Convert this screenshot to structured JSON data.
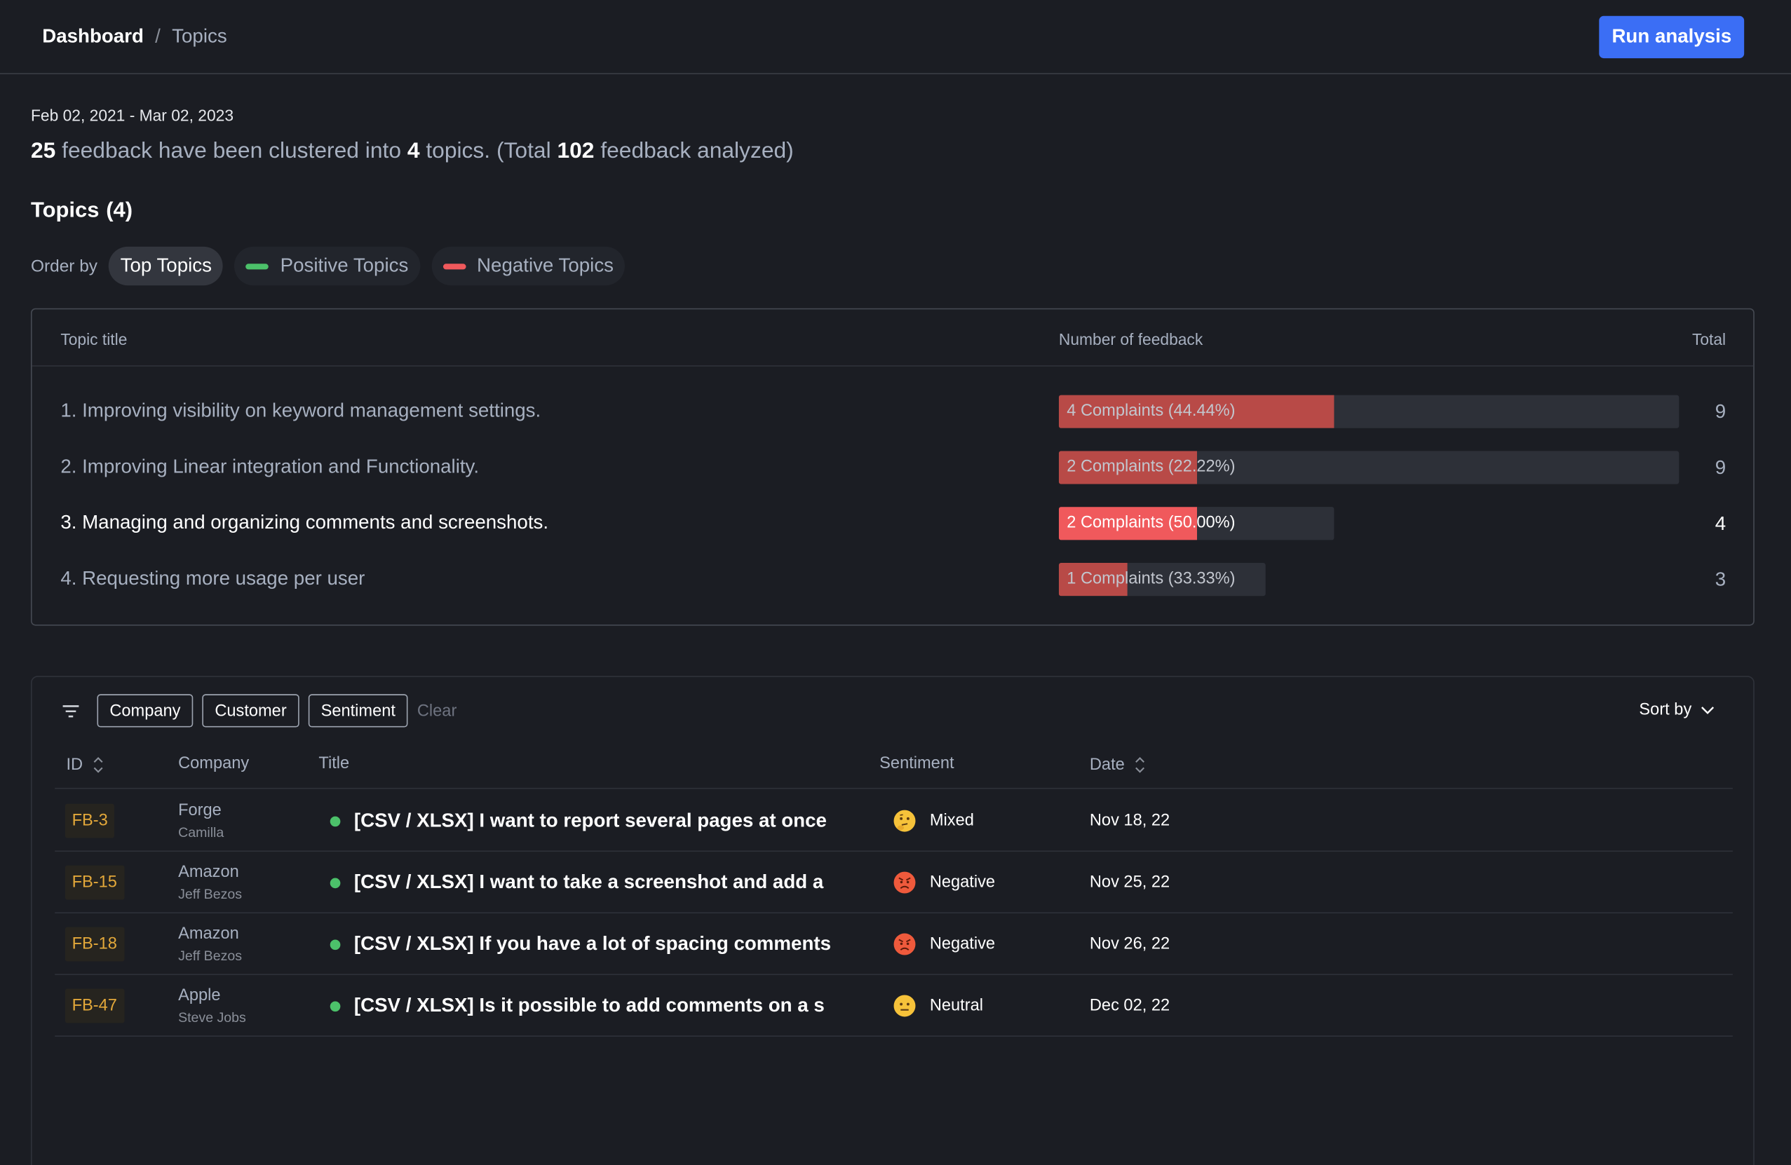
{
  "breadcrumb": {
    "home": "Dashboard",
    "separator": "/",
    "current": "Topics"
  },
  "header": {
    "run_button": "Run analysis"
  },
  "date_range": "Feb 02, 2021 - Mar 02, 2023",
  "summary": {
    "feedback_count": "25",
    "text1": "feedback have been clustered into",
    "topic_count": "4",
    "text2": "topics. (Total",
    "total_count": "102",
    "text3": "feedback analyzed)"
  },
  "topics_heading": {
    "title": "Topics",
    "count": "(4)"
  },
  "order_by": {
    "label": "Order by",
    "options": [
      "Top Topics",
      "Positive Topics",
      "Negative Topics"
    ],
    "active": "Top Topics"
  },
  "topics_table": {
    "columns": [
      "Topic title",
      "Number of feedback",
      "Total"
    ],
    "rows": [
      {
        "title": "1. Improving visibility on keyword management settings.",
        "bar_label": "4 Complaints (44.44%)",
        "complaint_fraction": 0.4444,
        "scale_fraction": 1.0,
        "total": "9"
      },
      {
        "title": "2. Improving Linear integration and Functionality.",
        "bar_label": "2 Complaints (22.22%)",
        "complaint_fraction": 0.2222,
        "scale_fraction": 1.0,
        "total": "9"
      },
      {
        "title": "3. Managing and organizing comments and screenshots.",
        "bar_label": "2 Complaints (50.00%)",
        "complaint_fraction": 0.5,
        "scale_fraction": 0.4444,
        "total": "4"
      },
      {
        "title": "4. Requesting more usage per user",
        "bar_label": "1 Complaints (33.33%)",
        "complaint_fraction": 0.3333,
        "scale_fraction": 0.3333,
        "total": "3"
      }
    ]
  },
  "feedback": {
    "filters": [
      "Company",
      "Customer",
      "Sentiment"
    ],
    "clear": "Clear",
    "sort_by": "Sort by",
    "columns": {
      "id": "ID",
      "company": "Company",
      "title": "Title",
      "sentiment": "Sentiment",
      "date": "Date"
    },
    "rows": [
      {
        "id": "FB-3",
        "company": "Forge",
        "customer": "Camilla",
        "title": "[CSV / XLSX] I want to report several pages at once",
        "sentiment": "Mixed",
        "sentiment_icon": "thinking-face-icon",
        "date": "Nov 18, 22"
      },
      {
        "id": "FB-15",
        "company": "Amazon",
        "customer": "Jeff Bezos",
        "title": "[CSV / XLSX] I want to take a screenshot and add a",
        "sentiment": "Negative",
        "sentiment_icon": "angry-face-icon",
        "date": "Nov 25, 22"
      },
      {
        "id": "FB-18",
        "company": "Amazon",
        "customer": "Jeff Bezos",
        "title": "[CSV / XLSX] If you have a lot of spacing comments",
        "sentiment": "Negative",
        "sentiment_icon": "angry-face-icon",
        "date": "Nov 26, 22"
      },
      {
        "id": "FB-47",
        "company": "Apple",
        "customer": "Steve Jobs",
        "title": "[CSV / XLSX] Is it possible to add comments on a s",
        "sentiment": "Neutral",
        "sentiment_icon": "neutral-face-icon",
        "date": "Dec 02, 22"
      }
    ]
  }
}
